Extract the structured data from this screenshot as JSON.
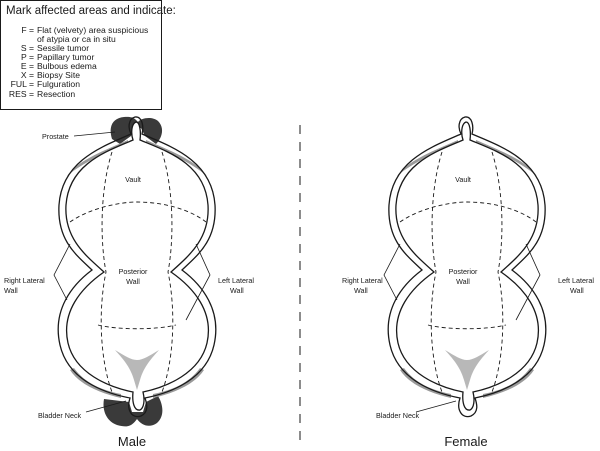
{
  "legend": {
    "title": "Mark affected areas and indicate:",
    "items": [
      {
        "code": "F =",
        "desc": [
          "Flat (velvety) area suspicious",
          "of atypia or ca in situ"
        ]
      },
      {
        "code": "S =",
        "desc": [
          "Sessile tumor"
        ]
      },
      {
        "code": "P =",
        "desc": [
          "Papillary tumor"
        ]
      },
      {
        "code": "E =",
        "desc": [
          "Bulbous edema"
        ]
      },
      {
        "code": "X =",
        "desc": [
          "Biopsy Site"
        ]
      },
      {
        "code": "FUL =",
        "desc": [
          "Fulguration"
        ]
      },
      {
        "code": "RES =",
        "desc": [
          "Resection"
        ]
      }
    ]
  },
  "male": {
    "caption": "Male",
    "prostate": "Prostate",
    "vault": "Vault",
    "posterior_wall": [
      "Posterior",
      "Wall"
    ],
    "right_lateral_wall": [
      "Right Lateral",
      "Wall"
    ],
    "left_lateral_wall": [
      "Left Lateral",
      "Wall"
    ],
    "bladder_neck": "Bladder Neck"
  },
  "female": {
    "caption": "Female",
    "vault": "Vault",
    "posterior_wall": [
      "Posterior",
      "Wall"
    ],
    "right_lateral_wall": [
      "Right Lateral",
      "Wall"
    ],
    "left_lateral_wall": [
      "Left Lateral",
      "Wall"
    ],
    "bladder_neck": "Bladder Neck"
  },
  "colors": {
    "ink": "#1a1a1a",
    "wall_gray": "#9a9a9a",
    "prostate_dark": "#3a3a3a",
    "trigone_gray": "#b8b8b8"
  }
}
